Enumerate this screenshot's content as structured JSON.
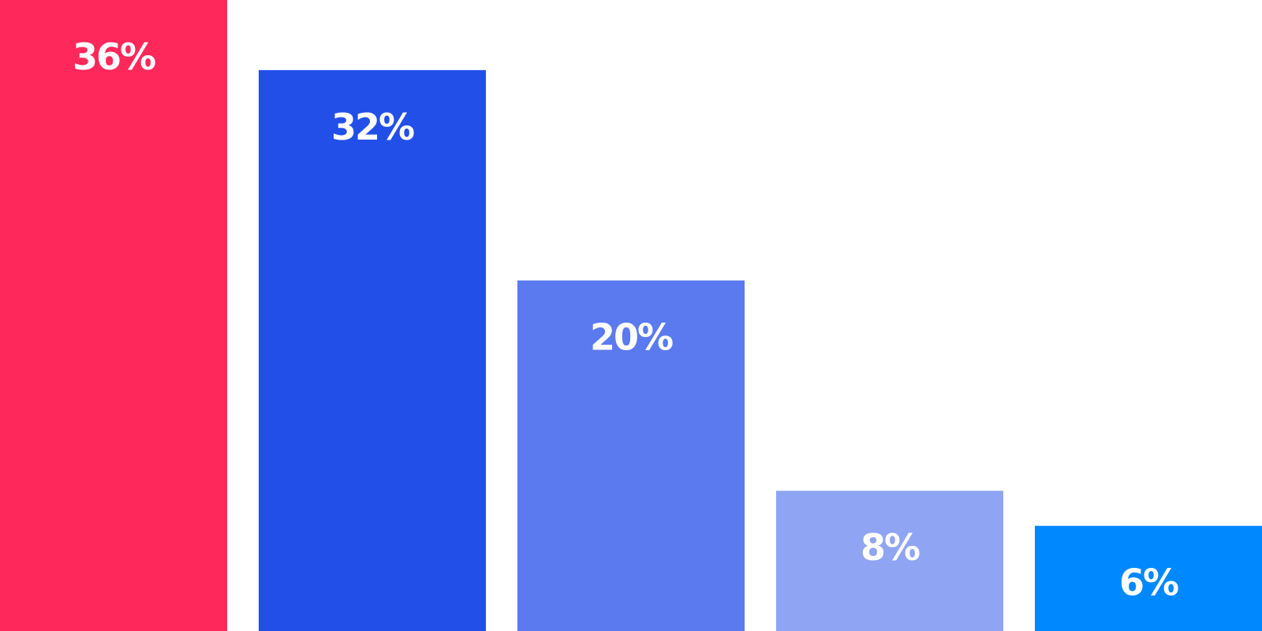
{
  "chart_data": {
    "type": "bar",
    "ylim": [
      0,
      36
    ],
    "grid": false,
    "bars": [
      {
        "value": 36,
        "label": "36%",
        "color": "#ff285a"
      },
      {
        "value": 32,
        "label": "32%",
        "color": "#224fe8"
      },
      {
        "value": 20,
        "label": "20%",
        "color": "#5b7af0"
      },
      {
        "value": 8,
        "label": "8%",
        "color": "#8fa4f2"
      },
      {
        "value": 6,
        "label": "6%",
        "color": "#0088ff"
      }
    ]
  }
}
